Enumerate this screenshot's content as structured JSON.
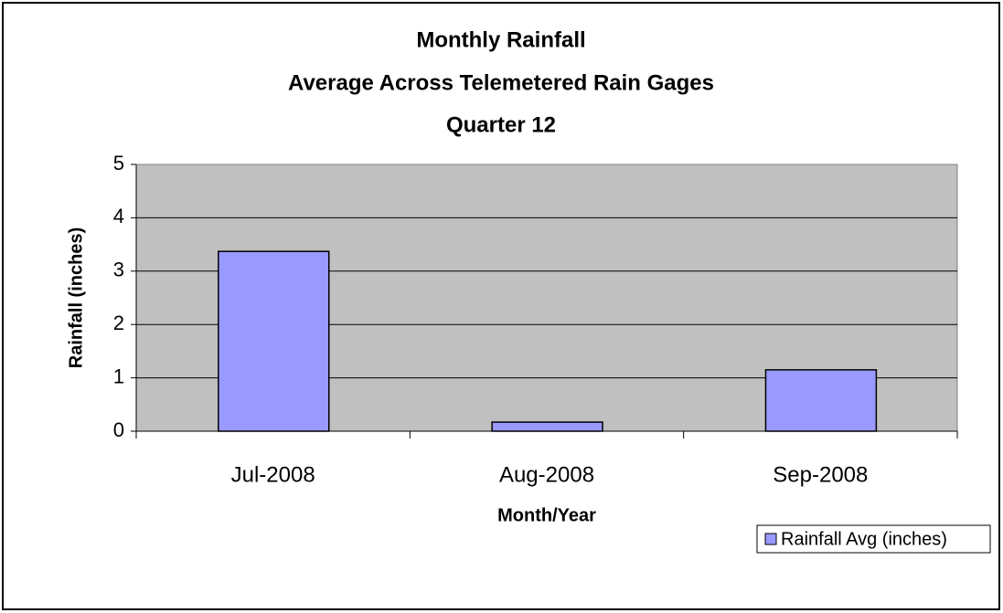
{
  "chart_data": {
    "type": "bar",
    "title": [
      "Monthly Rainfall",
      "Average Across Telemetered Rain Gages",
      "Quarter 12"
    ],
    "x_label": "Month/Year",
    "y_label": "Rainfall (inches)",
    "categories": [
      "Jul-2008",
      "Aug-2008",
      "Sep-2008"
    ],
    "series": [
      {
        "name": "Rainfall Avg (inches)",
        "color": "#9999ff",
        "values": [
          3.37,
          0.17,
          1.15
        ]
      }
    ],
    "ylim": [
      0,
      5
    ],
    "yticks": [
      0,
      1,
      2,
      3,
      4,
      5
    ],
    "grid": true,
    "legend": "bottom-right"
  }
}
